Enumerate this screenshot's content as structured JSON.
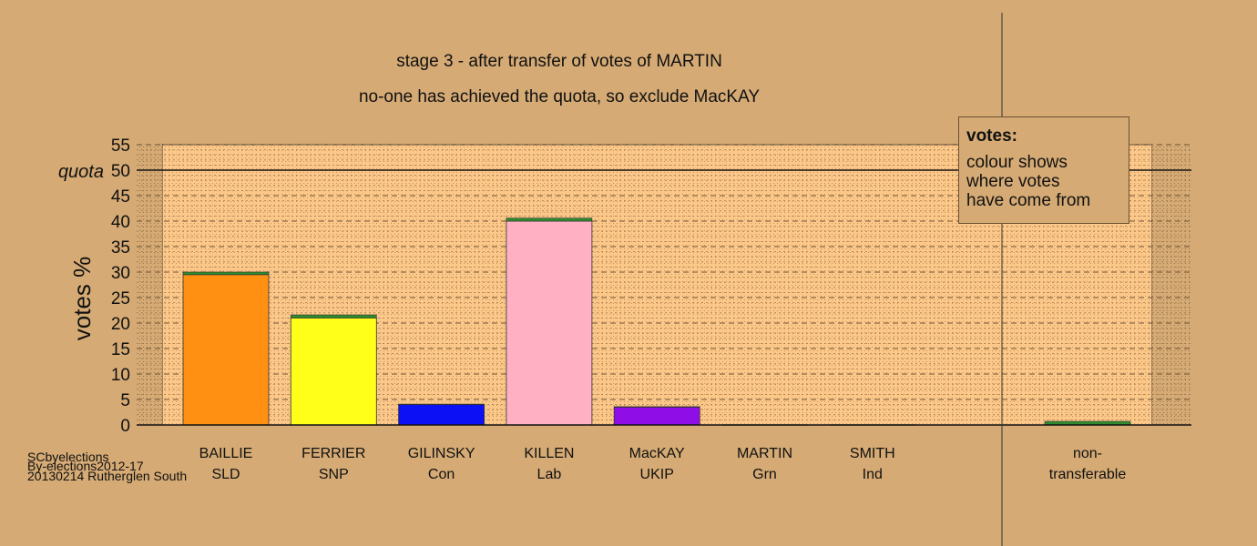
{
  "title_line1": "stage 3 - after transfer of votes of MARTIN",
  "title_line2": "no-one has achieved the quota, so exclude MacKAY",
  "chart_data": {
    "type": "bar",
    "ylabel": "votes %",
    "ylim": [
      0,
      55
    ],
    "yticks": [
      0,
      5,
      10,
      15,
      20,
      25,
      30,
      35,
      40,
      45,
      50,
      55
    ],
    "quota": {
      "label": "quota",
      "value": 50
    },
    "categories": [
      {
        "name": "BAILLIE",
        "party": "SLD",
        "first_pref": 29.5,
        "transfer": 0.5,
        "color": "#ff9011",
        "transfer_color": "#2e8b2e"
      },
      {
        "name": "FERRIER",
        "party": "SNP",
        "first_pref": 21.0,
        "transfer": 0.6,
        "color": "#ffff1a",
        "transfer_color": "#2e8b2e"
      },
      {
        "name": "GILINSKY",
        "party": "Con",
        "first_pref": 4.0,
        "transfer": 0.1,
        "color": "#0b10f5",
        "transfer_color": "#2e8b2e"
      },
      {
        "name": "KILLEN",
        "party": "Lab",
        "first_pref": 40.0,
        "transfer": 0.6,
        "color": "#ffb0c3",
        "transfer_color": "#2e8b2e"
      },
      {
        "name": "MacKAY",
        "party": "UKIP",
        "first_pref": 3.5,
        "transfer": 0.1,
        "color": "#8f0ee8",
        "transfer_color": "#2e8b2e"
      },
      {
        "name": "MARTIN",
        "party": "Grn",
        "first_pref": 0,
        "transfer": 0,
        "color": "#2e8b2e",
        "transfer_color": "#2e8b2e"
      },
      {
        "name": "SMITH",
        "party": "Ind",
        "first_pref": 0,
        "transfer": 0,
        "color": "#999999",
        "transfer_color": "#2e8b2e"
      }
    ],
    "non_transferable": {
      "name": "non-",
      "party": "transferable",
      "value": 0.7,
      "color": "#2e8b2e"
    },
    "grid": true
  },
  "legend": {
    "title": "votes:",
    "line1": "colour shows",
    "line2": "where votes",
    "line3": "have come from"
  },
  "footer": {
    "line1": "SCbyelections",
    "line2": "By-elections2012-17",
    "line3": "20130214 Rutherglen South"
  }
}
